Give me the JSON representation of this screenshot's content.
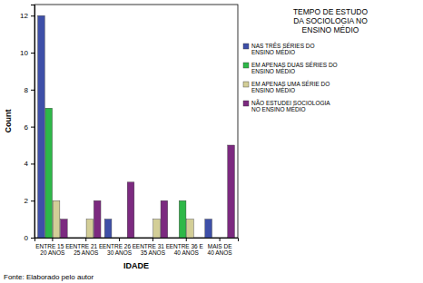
{
  "chart_data": {
    "type": "bar",
    "x_label": "IDADE",
    "y_label": "Count",
    "legend_title": "TEMPO DE ESTUDO DA SOCIOLOGIA NO ENSINO MÉDIO",
    "annotation": "Fonte: Elaborado pelo autor",
    "categories": [
      "ENTRE 15 E 20 ANOS",
      "ENTRE 21 E 25 ANOS",
      "ENTRE 26 E 30 ANOS",
      "ENTRE 31 E 35 ANOS",
      "ENTRE 36 E 40 ANOS",
      "MAIS DE 40 ANOS"
    ],
    "series": [
      {
        "name": "NAS TRÊS SÉRIES DO ENSINO MÉDIO",
        "color": "#3e4fa8",
        "values": [
          12,
          0,
          1,
          0,
          0,
          1
        ]
      },
      {
        "name": "EM APENAS DUAS SÉRIES DO ENSINO MÉDIO",
        "color": "#2eb848",
        "values": [
          7,
          0,
          0,
          0,
          2,
          0
        ]
      },
      {
        "name": "EM APENAS UMA SÉRIE DO ENSINO MÉDIO",
        "color": "#d3ce97",
        "values": [
          2,
          1,
          0,
          1,
          1,
          0
        ]
      },
      {
        "name": "NÃO ESTUDEI SOCIOLOGIA NO ENSINO MÉDIO",
        "color": "#7c2a80",
        "values": [
          1,
          2,
          3,
          2,
          0,
          5
        ]
      }
    ],
    "ylim": [
      0,
      12.6
    ],
    "yticks": [
      0,
      2,
      4,
      6,
      8,
      10,
      12
    ],
    "grid": false,
    "legend": "right"
  }
}
